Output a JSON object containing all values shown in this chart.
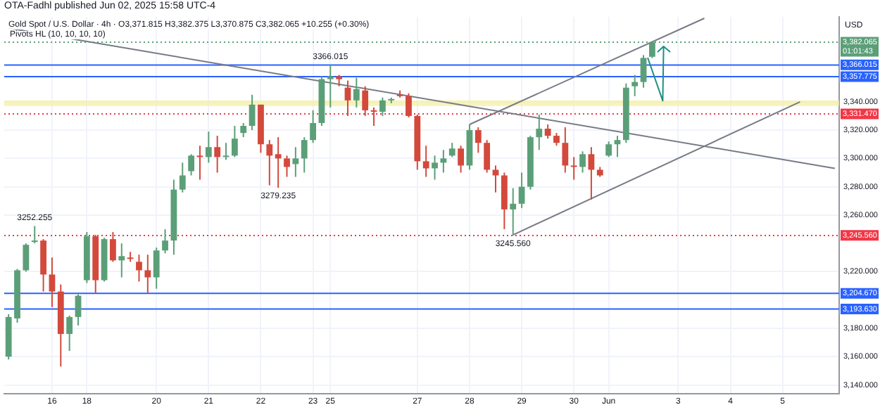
{
  "chart_data": {
    "type": "candlestick",
    "title": "OTA-Fadhl published Jun 02, 2025 15:58 UTC-4",
    "subtitle": "Gold Spot / U.S. Dollar · 4h · O3,371.815 H3,382.375 L3,370.875 C3,382.065 +10.255 (+0.30%)",
    "ylabel": "USD",
    "annotations": [
      "Pivots HL (10, 10, 10, 10)",
      {
        "text": "3252.255",
        "y": 3252.255
      },
      {
        "text": "3279.235",
        "y": 3279.235
      },
      {
        "text": "3366.015",
        "y": 3366.015
      },
      {
        "text": "3245.560",
        "y": 3245.56
      }
    ],
    "categories": [
      null,
      null,
      null,
      null,
      null,
      "16",
      null,
      null,
      null,
      "18",
      null,
      null,
      null,
      null,
      null,
      null,
      null,
      "20",
      null,
      null,
      null,
      null,
      null,
      "21",
      null,
      null,
      null,
      null,
      null,
      "22",
      null,
      null,
      null,
      null,
      null,
      "23",
      null,
      "25",
      null,
      null,
      null,
      null,
      null,
      null,
      null,
      null,
      null,
      "27",
      null,
      null,
      null,
      null,
      null,
      "28",
      null,
      null,
      null,
      null,
      null,
      "29",
      null,
      null,
      null,
      null,
      null,
      "30",
      null,
      null,
      null,
      "Jun",
      null,
      null,
      null,
      null,
      null,
      null,
      null,
      "3",
      null,
      null,
      null,
      null,
      null,
      "4",
      null,
      null,
      null,
      null,
      null,
      "5",
      null,
      null,
      null,
      null,
      null,
      null
    ],
    "ylim": [
      3134,
      3400
    ],
    "yticks": [
      {
        "value": 3140,
        "label": "3,140.000"
      },
      {
        "value": 3160,
        "label": "3,160.000"
      },
      {
        "value": 3180,
        "label": "3,180.000"
      },
      {
        "value": 3220,
        "label": "3,220.000"
      },
      {
        "value": 3260,
        "label": "3,260.000"
      },
      {
        "value": 3280,
        "label": "3,280.000"
      },
      {
        "value": 3300,
        "label": "3,300.000"
      },
      {
        "value": 3320,
        "label": "3,320.000"
      },
      {
        "value": 3340,
        "label": "3,340.000"
      }
    ],
    "grid": true,
    "bands": [
      {
        "axis": "y",
        "from": 3337,
        "to": 3341,
        "color": "#f3eea0"
      }
    ],
    "ref_lines": [
      {
        "axis": "y",
        "value": 3382.065,
        "label": "3,382.065\n01:01:43",
        "color": "#5b9f78",
        "line_style": "dotted"
      },
      {
        "axis": "y",
        "value": 3366.015,
        "label": "3,366.015",
        "color": "#2962ff",
        "line_style": "solid"
      },
      {
        "axis": "y",
        "value": 3357.775,
        "label": "3,357.775",
        "color": "#2962ff",
        "line_style": "solid"
      },
      {
        "axis": "y",
        "value": 3331.47,
        "label": "3,331.470",
        "color": "#f23645",
        "line_style": "dotted"
      },
      {
        "axis": "y",
        "value": 3245.56,
        "label": "3,245.560",
        "color": "#f23645",
        "line_style": "dotted"
      },
      {
        "axis": "y",
        "value": 3204.67,
        "label": "3,204.670",
        "color": "#2962ff",
        "line_style": "solid"
      },
      {
        "axis": "y",
        "value": 3193.63,
        "label": "3,193.630",
        "color": "#2962ff",
        "line_style": "solid"
      }
    ],
    "ohlc": [
      [
        3160,
        3190,
        3158,
        3188
      ],
      [
        3187,
        3222,
        3184,
        3221
      ],
      [
        3221,
        3240,
        3220,
        3239
      ],
      [
        3241,
        3252.255,
        3240,
        3242
      ],
      [
        3242,
        3243,
        3206,
        3218
      ],
      [
        3218,
        3230,
        3195,
        3206
      ],
      [
        3206,
        3211,
        3153,
        3176
      ],
      [
        3176,
        3189,
        3164,
        3188
      ],
      [
        3188,
        3204,
        3182,
        3203
      ],
      [
        3214,
        3248,
        3212,
        3245
      ],
      [
        3245,
        3246,
        3205,
        3214
      ],
      [
        3214,
        3244,
        3213,
        3243
      ],
      [
        3243,
        3248,
        3227,
        3228
      ],
      [
        3228,
        3240,
        3216,
        3231
      ],
      [
        3230,
        3234,
        3227,
        3229
      ],
      [
        3227,
        3232,
        3213,
        3221
      ],
      [
        3221,
        3232,
        3205,
        3216
      ],
      [
        3216,
        3237,
        3208,
        3235
      ],
      [
        3235,
        3250,
        3233,
        3242
      ],
      [
        3242,
        3285,
        3232,
        3278
      ],
      [
        3278,
        3297,
        3276,
        3288
      ],
      [
        3291,
        3303,
        3288,
        3302
      ],
      [
        3302,
        3309,
        3285,
        3301
      ],
      [
        3301,
        3319,
        3297,
        3308
      ],
      [
        3308,
        3316,
        3290,
        3301
      ],
      [
        3301,
        3311,
        3299,
        3302
      ],
      [
        3302,
        3323,
        3301,
        3314
      ],
      [
        3318,
        3325,
        3315,
        3323
      ],
      [
        3323,
        3345,
        3320,
        3338
      ],
      [
        3338,
        3338,
        3304,
        3310
      ],
      [
        3310,
        3313,
        3281,
        3302
      ],
      [
        3303,
        3315,
        3279.235,
        3300
      ],
      [
        3300,
        3302,
        3287,
        3294
      ],
      [
        3296,
        3308,
        3287,
        3300
      ],
      [
        3300,
        3315,
        3290,
        3313
      ],
      [
        3313,
        3334,
        3311,
        3325
      ],
      [
        3325,
        3358,
        3323,
        3356
      ],
      [
        3356,
        3366.015,
        3336,
        3358
      ],
      [
        3358,
        3359,
        3351,
        3356
      ],
      [
        3350,
        3355,
        3330,
        3341
      ],
      [
        3341,
        3357,
        3336,
        3349
      ],
      [
        3348,
        3351,
        3330,
        3334
      ],
      [
        3334,
        3336,
        3323,
        3333
      ],
      [
        3333,
        3343,
        3330,
        3341
      ],
      [
        3341,
        3343,
        3339,
        3342
      ],
      [
        3345,
        3348,
        3343,
        3344
      ],
      [
        3344,
        3346,
        3329,
        3330
      ],
      [
        3330,
        3331,
        3292,
        3298
      ],
      [
        3298,
        3309,
        3287,
        3293
      ],
      [
        3293,
        3302,
        3285,
        3297
      ],
      [
        3297,
        3306,
        3290,
        3300
      ],
      [
        3302,
        3311,
        3301,
        3307
      ],
      [
        3307,
        3309,
        3290,
        3295
      ],
      [
        3295,
        3324,
        3292,
        3320
      ],
      [
        3320,
        3322,
        3304,
        3311
      ],
      [
        3311,
        3313,
        3290,
        3292
      ],
      [
        3292,
        3295,
        3276,
        3288
      ],
      [
        3288,
        3290,
        3250,
        3264
      ],
      [
        3264,
        3279,
        3245.56,
        3268
      ],
      [
        3268,
        3290,
        3265,
        3280
      ],
      [
        3280,
        3316,
        3278,
        3315
      ],
      [
        3315,
        3331,
        3306,
        3321
      ],
      [
        3321,
        3324,
        3314,
        3316
      ],
      [
        3316,
        3318,
        3309,
        3311
      ],
      [
        3311,
        3322,
        3290,
        3295
      ],
      [
        3295,
        3301,
        3285,
        3294
      ],
      [
        3294,
        3305,
        3290,
        3303
      ],
      [
        3303,
        3308,
        3271,
        3292
      ],
      [
        3292,
        3294,
        3287,
        3288
      ],
      [
        3302,
        3312,
        3301,
        3310
      ],
      [
        3310,
        3316,
        3301,
        3313
      ],
      [
        3313,
        3353,
        3311,
        3350
      ],
      [
        3351,
        3359,
        3344,
        3354
      ],
      [
        3354,
        3373,
        3350,
        3371
      ],
      [
        3371.815,
        3382.375,
        3370.875,
        3382.065
      ],
      null,
      null,
      null,
      null,
      null,
      null,
      null,
      null,
      null,
      null,
      null,
      null,
      null,
      null,
      null,
      null,
      null,
      null,
      null,
      null,
      null
    ],
    "colors": [
      "#5b9f78",
      "#5b9f78",
      "#5b9f78",
      "#5b9f78",
      "#d3493c",
      "#d3493c",
      "#d3493c",
      "#5b9f78",
      "#5b9f78",
      "#5b9f78",
      "#d3493c",
      "#5b9f78",
      "#d3493c",
      "#5b9f78",
      "#d3493c",
      "#d3493c",
      "#d3493c",
      "#5b9f78",
      "#5b9f78",
      "#5b9f78",
      "#5b9f78",
      "#5b9f78",
      "#d3493c",
      "#5b9f78",
      "#d3493c",
      "#5b9f78",
      "#5b9f78",
      "#5b9f78",
      "#5b9f78",
      "#d3493c",
      "#d3493c",
      "#d3493c",
      "#d3493c",
      "#5b9f78",
      "#5b9f78",
      "#5b9f78",
      "#5b9f78",
      "#5b9f78",
      "#d3493c",
      "#d3493c",
      "#5b9f78",
      "#d3493c",
      "#d3493c",
      "#5b9f78",
      "#5b9f78",
      "#d3493c",
      "#d3493c",
      "#d3493c",
      "#d3493c",
      "#5b9f78",
      "#5b9f78",
      "#5b9f78",
      "#d3493c",
      "#5b9f78",
      "#d3493c",
      "#d3493c",
      "#d3493c",
      "#d3493c",
      "#5b9f78",
      "#5b9f78",
      "#5b9f78",
      "#5b9f78",
      "#d3493c",
      "#d3493c",
      "#d3493c",
      "#d3493c",
      "#5b9f78",
      "#d3493c",
      "#d3493c",
      "#5b9f78",
      "#5b9f78",
      "#5b9f78",
      "#5b9f78",
      "#5b9f78",
      "#5b9f78",
      null,
      null,
      null,
      null,
      null,
      null,
      null,
      null,
      null,
      null,
      null,
      null,
      null,
      null,
      null,
      null,
      null,
      null,
      null,
      null,
      null
    ],
    "series": [
      {
        "type": "line",
        "color": "#787b86",
        "values": [
          3392,
          null,
          null,
          null,
          null,
          null,
          null,
          null,
          null,
          null,
          null,
          null,
          null,
          null,
          null,
          null,
          null,
          null,
          null,
          null,
          null,
          null,
          null,
          null,
          null,
          null,
          null,
          null,
          null,
          null,
          null,
          null,
          null,
          null,
          null,
          null,
          null,
          null,
          null,
          null,
          null,
          null,
          null,
          null,
          null,
          null,
          null,
          null,
          null,
          null,
          null,
          null,
          null,
          null,
          null,
          null,
          null,
          null,
          null,
          null,
          null,
          null,
          null,
          null,
          null,
          null,
          null,
          null,
          null,
          null,
          null,
          null,
          null,
          null,
          null,
          null,
          null,
          null,
          null,
          null,
          null,
          null,
          null,
          null,
          null,
          null,
          null,
          null,
          null,
          null,
          null,
          null,
          null,
          null,
          null,
          3293
        ]
      },
      {
        "type": "line",
        "color": "#787b86",
        "values": [
          null,
          null,
          null,
          null,
          null,
          null,
          null,
          null,
          null,
          null,
          null,
          null,
          null,
          null,
          null,
          null,
          null,
          null,
          null,
          null,
          null,
          null,
          null,
          null,
          null,
          null,
          null,
          null,
          null,
          null,
          null,
          null,
          null,
          null,
          null,
          null,
          null,
          null,
          null,
          null,
          null,
          null,
          null,
          null,
          null,
          null,
          null,
          null,
          null,
          null,
          null,
          null,
          null,
          3324,
          null,
          null,
          null,
          null,
          null,
          null,
          null,
          null,
          null,
          null,
          null,
          null,
          null,
          null,
          null,
          null,
          null,
          null,
          null,
          null,
          null,
          null,
          null,
          null,
          null,
          null,
          3399,
          null,
          null,
          null,
          null,
          null,
          null,
          null,
          null,
          null,
          null,
          null,
          null,
          null,
          null,
          null
        ]
      },
      {
        "type": "line",
        "color": "#787b86",
        "values": [
          null,
          null,
          null,
          null,
          null,
          null,
          null,
          null,
          null,
          null,
          null,
          null,
          null,
          null,
          null,
          null,
          null,
          null,
          null,
          null,
          null,
          null,
          null,
          null,
          null,
          null,
          null,
          null,
          null,
          null,
          null,
          null,
          null,
          null,
          null,
          null,
          null,
          null,
          null,
          null,
          null,
          null,
          null,
          null,
          null,
          null,
          null,
          null,
          null,
          null,
          null,
          null,
          null,
          null,
          null,
          null,
          null,
          null,
          3246,
          null,
          null,
          null,
          null,
          null,
          null,
          null,
          null,
          null,
          null,
          null,
          null,
          null,
          null,
          null,
          null,
          null,
          null,
          null,
          null,
          null,
          null,
          null,
          null,
          null,
          null,
          null,
          null,
          null,
          null,
          null,
          null,
          3340,
          null,
          null,
          null,
          null
        ]
      }
    ]
  }
}
